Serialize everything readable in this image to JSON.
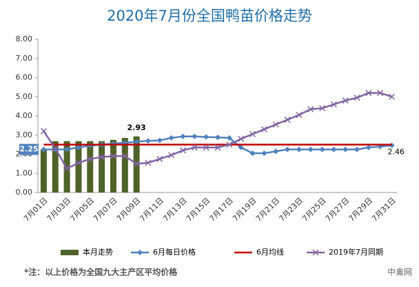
{
  "chart_data": {
    "type": "combo",
    "title": "2020年7月份全国鸭苗价格走势",
    "categories": [
      "7月01日",
      null,
      "7月03日",
      null,
      "7月05日",
      null,
      "7月07日",
      null,
      "7月09日",
      null,
      "7月11日",
      null,
      "7月13日",
      null,
      "7月15日",
      null,
      "7月17日",
      null,
      "7月19日",
      null,
      "7月21日",
      null,
      "7月23日",
      null,
      "7月25日",
      null,
      "7月27日",
      null,
      "7月29日",
      null,
      "7月31日"
    ],
    "series": [
      {
        "name": "本月走势",
        "type": "bar",
        "color": "#4f6228",
        "label_indices": [
          0,
          8
        ],
        "values": [
          2.25,
          2.68,
          2.68,
          2.68,
          2.68,
          2.68,
          2.75,
          2.85,
          2.93,
          null,
          null,
          null,
          null,
          null,
          null,
          null,
          null,
          null,
          null,
          null,
          null,
          null,
          null,
          null,
          null,
          null,
          null,
          null,
          null,
          null,
          null
        ]
      },
      {
        "name": "6月每日价格",
        "type": "line",
        "marker": "diamond",
        "color": "#4f81bd",
        "label_indices": [
          30
        ],
        "values": [
          2.25,
          2.25,
          2.25,
          2.35,
          2.45,
          2.5,
          2.55,
          2.6,
          2.65,
          2.7,
          2.72,
          2.85,
          2.93,
          2.93,
          2.9,
          2.88,
          2.85,
          2.35,
          2.05,
          2.05,
          2.15,
          2.25,
          2.25,
          2.25,
          2.25,
          2.25,
          2.25,
          2.25,
          2.35,
          2.4,
          2.46
        ]
      },
      {
        "name": "6月均线",
        "type": "line",
        "color": "#c00000",
        "values": [
          2.5,
          2.5,
          2.5,
          2.5,
          2.5,
          2.5,
          2.5,
          2.5,
          2.5,
          2.5,
          2.5,
          2.5,
          2.5,
          2.5,
          2.5,
          2.5,
          2.5,
          2.5,
          2.5,
          2.5,
          2.5,
          2.5,
          2.5,
          2.5,
          2.5,
          2.5,
          2.5,
          2.5,
          2.5,
          2.5,
          2.5
        ]
      },
      {
        "name": "2019年7月同期",
        "type": "line",
        "marker": "x",
        "color": "#8064a2",
        "values": [
          3.2,
          2.3,
          1.25,
          1.55,
          1.75,
          1.85,
          1.9,
          1.9,
          1.5,
          1.55,
          1.75,
          1.95,
          2.2,
          2.35,
          2.35,
          2.35,
          2.5,
          2.8,
          3.05,
          3.3,
          3.55,
          3.8,
          4.05,
          4.35,
          4.4,
          4.6,
          4.8,
          4.95,
          5.2,
          5.2,
          5.0
        ]
      }
    ],
    "ylim": [
      0,
      8
    ],
    "yticks": [
      {
        "value": 0,
        "label": "0.00"
      },
      {
        "value": 1,
        "label": "1.00"
      },
      {
        "value": 2,
        "label": "2.00"
      },
      {
        "value": 3,
        "label": "3.00"
      },
      {
        "value": 4,
        "label": "4.00"
      },
      {
        "value": 5,
        "label": "5.00"
      },
      {
        "value": 6,
        "label": "6.00"
      },
      {
        "value": 7,
        "label": "7.00"
      },
      {
        "value": 8,
        "label": "8.00"
      }
    ],
    "grid": false,
    "note": "*注：以上价格为全国九大主产区平均价格",
    "brand": "中禽网"
  }
}
